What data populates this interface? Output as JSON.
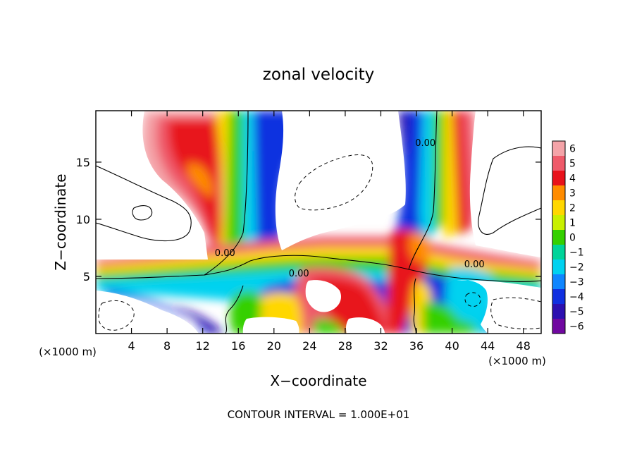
{
  "chart_data": {
    "type": "heatmap",
    "title": "zonal velocity",
    "xlabel": "X−coordinate",
    "ylabel": "Z−coordinate",
    "x_unit": "(×1000 m)",
    "y_unit": "(×1000 m)",
    "xlim": [
      0,
      50
    ],
    "ylim": [
      0,
      19.5
    ],
    "x_ticks": [
      "4",
      "8",
      "12",
      "16",
      "20",
      "24",
      "28",
      "32",
      "36",
      "40",
      "44",
      "48"
    ],
    "x_tick_values": [
      4,
      8,
      12,
      16,
      20,
      24,
      28,
      32,
      36,
      40,
      44,
      48
    ],
    "y_ticks": [
      "5",
      "10",
      "15"
    ],
    "y_tick_values": [
      5,
      10,
      15
    ],
    "colorbar": {
      "labels": [
        "6",
        "5",
        "4",
        "3",
        "2",
        "1",
        "0",
        "−1",
        "−2",
        "−3",
        "−4",
        "−5",
        "−6"
      ],
      "values": [
        6,
        5,
        4,
        3,
        2,
        1,
        0,
        -1,
        -2,
        -3,
        -4,
        -5,
        -6
      ],
      "colors": [
        "#f4a3a8",
        "#ef5a6a",
        "#e8121b",
        "#ff8c00",
        "#ffd700",
        "#c8f000",
        "#35d000",
        "#00d49a",
        "#00d2f0",
        "#0f86ff",
        "#1030e0",
        "#2c10b0",
        "#7008a0"
      ]
    },
    "contour_labels": [
      {
        "text": "0.00",
        "x": 14.5,
        "y": 6.8
      },
      {
        "text": "0.00",
        "x": 22.8,
        "y": 5.0
      },
      {
        "text": "0.00",
        "x": 37.0,
        "y": 16.4
      },
      {
        "text": "0.00",
        "x": 42.5,
        "y": 5.8
      }
    ],
    "footer": "CONTOUR INTERVAL = 1.000E+01",
    "grid": false
  }
}
